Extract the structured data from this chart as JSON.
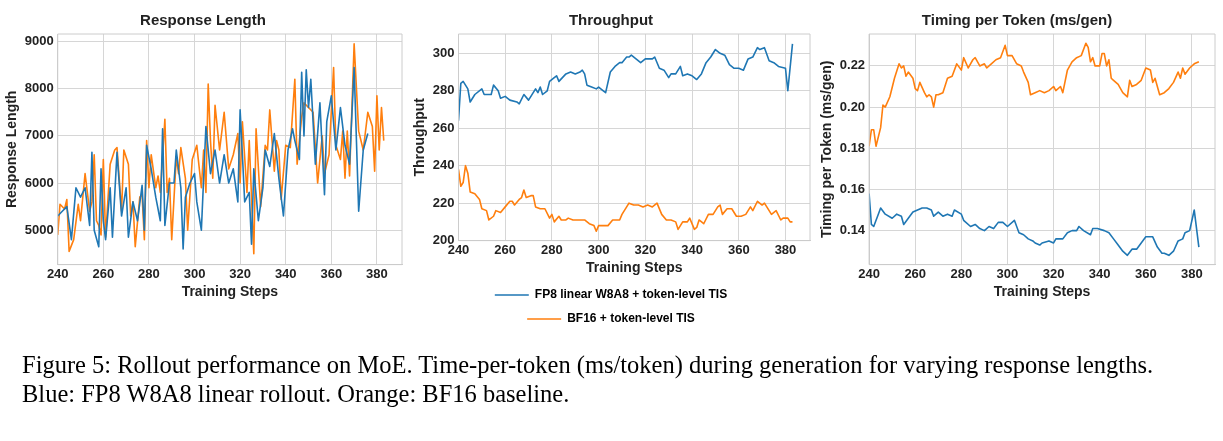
{
  "chart_data": [
    {
      "type": "line",
      "title": "Response Length",
      "xlabel": "Training Steps",
      "ylabel": "Response Length",
      "xlim": [
        240,
        391
      ],
      "xticks": [
        240,
        260,
        280,
        300,
        320,
        340,
        360,
        380
      ],
      "ylim": [
        4270,
        9160
      ],
      "yticks": [
        5000,
        6000,
        7000,
        8000,
        9000
      ],
      "grid": true,
      "marker": "none",
      "line_style": "solid",
      "legend": false,
      "series": [
        {
          "color": "#1f77b4",
          "x": [
            240,
            242,
            244,
            246,
            248,
            250,
            252,
            254,
            255,
            256,
            258,
            259,
            260,
            261,
            263,
            264,
            266,
            268,
            270,
            271,
            273,
            275,
            277,
            278,
            279,
            281,
            283,
            285,
            286,
            287,
            289,
            291,
            292,
            294,
            295,
            296,
            298,
            300,
            301,
            303,
            305,
            307,
            309,
            311,
            313,
            315,
            317,
            319,
            320,
            321,
            322,
            324,
            325,
            326,
            328,
            330,
            331,
            333,
            335,
            337,
            339,
            341,
            343,
            344,
            346,
            347,
            348,
            349,
            350,
            351,
            353,
            355,
            357,
            358,
            360,
            362,
            364,
            366,
            368,
            370,
            372,
            374,
            376
          ],
          "values": [
            5300,
            5400,
            5500,
            4800,
            5900,
            5700,
            5900,
            5100,
            6650,
            5000,
            4650,
            6300,
            5200,
            4800,
            5900,
            4850,
            6650,
            5300,
            5900,
            4850,
            5600,
            5200,
            5950,
            5000,
            6800,
            6300,
            5700,
            5200,
            7150,
            5100,
            6000,
            6000,
            6700,
            5900,
            4600,
            5700,
            6000,
            6200,
            5600,
            5000,
            7200,
            6200,
            6700,
            6000,
            6600,
            6000,
            6300,
            5600,
            7550,
            6600,
            5600,
            5800,
            4700,
            6300,
            5200,
            5900,
            6700,
            6350,
            7050,
            6100,
            5300,
            6700,
            7150,
            6900,
            6500,
            8350,
            7000,
            8400,
            7600,
            8200,
            6400,
            7700,
            5750,
            7300,
            7850,
            6700,
            7600,
            6800,
            6400,
            8450,
            5400,
            6700,
            7050
          ]
        },
        {
          "color": "#ff7f0e",
          "x": [
            240,
            241,
            243,
            244,
            245,
            247,
            249,
            250,
            252,
            254,
            255,
            256,
            257,
            258,
            259,
            260,
            261,
            263,
            265,
            266,
            268,
            269,
            271,
            272,
            273,
            274,
            276,
            277,
            278,
            279,
            280,
            281,
            283,
            284,
            285,
            287,
            288,
            289,
            290,
            292,
            293,
            294,
            296,
            297,
            299,
            301,
            303,
            304,
            305,
            306,
            307,
            308,
            309,
            311,
            313,
            315,
            317,
            319,
            320,
            321,
            323,
            324,
            326,
            327,
            329,
            331,
            332,
            333,
            335,
            336,
            337,
            338,
            340,
            342,
            344,
            345,
            347,
            348,
            350,
            352,
            354,
            356,
            357,
            359,
            361,
            362,
            364,
            365,
            366,
            367,
            368,
            370,
            372,
            374,
            376,
            378,
            379,
            380,
            381,
            382,
            383
          ],
          "values": [
            4900,
            5550,
            5450,
            5650,
            4550,
            4800,
            5550,
            5200,
            6200,
            5400,
            5600,
            6600,
            5200,
            5100,
            4900,
            6500,
            4850,
            6400,
            6700,
            6750,
            5400,
            6700,
            6400,
            5300,
            5600,
            4650,
            5700,
            5750,
            4800,
            6900,
            5900,
            6600,
            5900,
            6150,
            5800,
            7350,
            5800,
            6100,
            4800,
            6550,
            6200,
            6750,
            6100,
            5000,
            6500,
            6800,
            5900,
            6700,
            5800,
            8100,
            6900,
            6100,
            7650,
            6700,
            7500,
            6300,
            6600,
            7050,
            6000,
            7300,
            5800,
            6900,
            4500,
            7150,
            5500,
            6800,
            6700,
            7550,
            6250,
            6900,
            6700,
            5650,
            6800,
            6750,
            8200,
            6400,
            7400,
            7700,
            7600,
            7500,
            6000,
            7000,
            6200,
            6600,
            8450,
            6800,
            6500,
            7100,
            6100,
            7100,
            6150,
            8950,
            7100,
            6700,
            7500,
            7200,
            6250,
            7850,
            6700,
            7600,
            6900
          ]
        }
      ]
    },
    {
      "type": "line",
      "title": "Throughput",
      "xlabel": "Training Steps",
      "ylabel": "Throughput",
      "xlim": [
        240,
        390.5
      ],
      "xticks": [
        240,
        260,
        280,
        300,
        320,
        340,
        360,
        380
      ],
      "ylim": [
        200,
        310.3
      ],
      "yticks": [
        200,
        220,
        240,
        260,
        280,
        300
      ],
      "grid": true,
      "marker": "none",
      "line_style": "solid",
      "legend": "bottom",
      "annotations": [
        "Figure 5: Rollout performance on MoE. Time-per-token (ms/token) during generation for varying response lengths. Blue: FP8 W8A8 linear rollout. Orange: BF16 baseline."
      ],
      "series": [
        {
          "name": "FP8 linear W8A8 + token-level TIS",
          "color": "#1f77b4",
          "x": [
            240,
            241,
            242,
            244,
            245,
            247,
            250,
            251,
            254,
            255,
            257,
            258,
            260,
            262,
            265,
            266,
            268,
            270,
            273,
            274,
            275,
            276,
            278,
            279,
            281,
            282,
            283,
            286,
            288,
            290,
            292,
            293,
            294,
            295,
            297,
            299,
            300,
            302,
            303,
            305,
            307,
            309,
            310,
            312,
            313,
            314,
            316,
            318,
            320,
            323,
            324,
            326,
            328,
            330,
            331,
            333,
            335,
            336,
            338,
            340,
            342,
            344,
            346,
            348,
            349,
            350,
            352,
            354,
            356,
            358,
            360,
            362,
            364,
            366,
            368,
            369,
            371,
            373,
            375,
            377,
            380,
            381,
            383
          ],
          "values": [
            264,
            284,
            285,
            281,
            274,
            278,
            281,
            278,
            278,
            283,
            280,
            276,
            277,
            275,
            274,
            273,
            278,
            275,
            281,
            279,
            282,
            278,
            280,
            285,
            287,
            288,
            285,
            289,
            290,
            289,
            290,
            291,
            289,
            283,
            282,
            281,
            282,
            280,
            279,
            290,
            293,
            295,
            295,
            298,
            298,
            299,
            297,
            295,
            297,
            297,
            298,
            292,
            291,
            287,
            289,
            289,
            293,
            288,
            289,
            288,
            286,
            289,
            295,
            298,
            300,
            302,
            300,
            299,
            294,
            292,
            292,
            291,
            297,
            298,
            303,
            302,
            303,
            296,
            295,
            293,
            292,
            280,
            305
          ]
        },
        {
          "name": "BF16 + token-level TIS",
          "color": "#ff7f0e",
          "x": [
            240,
            241,
            242,
            243,
            244,
            245,
            247,
            249,
            250,
            252,
            253,
            255,
            256,
            258,
            260,
            262,
            263,
            264,
            266,
            267,
            268,
            269,
            271,
            272,
            273,
            275,
            277,
            279,
            280,
            281,
            283,
            284,
            286,
            287,
            289,
            291,
            294,
            296,
            298,
            299,
            300,
            302,
            304,
            306,
            307,
            309,
            310,
            312,
            313,
            315,
            317,
            319,
            321,
            323,
            325,
            327,
            329,
            331,
            333,
            334,
            336,
            338,
            339,
            341,
            342,
            343,
            345,
            347,
            349,
            351,
            352,
            353,
            355,
            357,
            359,
            361,
            363,
            365,
            366,
            368,
            370,
            371,
            372,
            374,
            376,
            378,
            379,
            381,
            382,
            383
          ],
          "values": [
            238,
            229,
            231,
            240,
            236,
            226,
            225,
            222,
            217,
            216,
            211,
            213,
            216,
            215,
            218,
            221,
            221,
            219,
            222,
            223,
            227,
            223,
            224,
            224,
            218,
            217,
            217,
            212,
            214,
            210,
            213,
            211,
            211,
            212,
            211,
            211,
            211,
            209,
            208,
            205,
            208,
            208,
            208,
            211,
            211,
            211,
            214,
            218,
            220,
            219,
            219,
            218,
            219,
            218,
            220,
            214,
            211,
            211,
            210,
            206,
            210,
            210,
            212,
            206,
            207,
            211,
            209,
            214,
            214,
            218,
            219,
            214,
            217,
            217,
            213,
            213,
            214,
            218,
            216,
            221,
            219,
            220,
            218,
            214,
            216,
            211,
            212,
            212,
            210,
            210
          ]
        }
      ]
    },
    {
      "type": "line",
      "title": "Timing per Token (ms/gen)",
      "xlabel": "Training Steps",
      "ylabel": "Timing per Token (ms/gen)",
      "xlim": [
        240,
        390
      ],
      "xticks": [
        240,
        260,
        280,
        300,
        320,
        340,
        360,
        380
      ],
      "ylim": [
        0.1235,
        0.2355
      ],
      "yticks": [
        {
          "value": 0.14,
          "label": "0.14"
        },
        {
          "value": 0.16,
          "label": "0.16"
        },
        {
          "value": 0.18,
          "label": "0.18"
        },
        {
          "value": 0.2,
          "label": "0.20"
        },
        {
          "value": 0.22,
          "label": "0.22"
        }
      ],
      "grid": true,
      "marker": "none",
      "line_style": "solid",
      "legend": false,
      "series": [
        {
          "color": "#ff7f0e",
          "x": [
            240,
            241,
            242,
            243,
            245,
            246,
            247,
            249,
            251,
            253,
            254,
            255,
            256,
            257,
            259,
            260,
            261,
            262,
            264,
            265,
            266,
            267,
            268,
            269,
            270,
            272,
            274,
            276,
            278,
            280,
            281,
            283,
            285,
            286,
            288,
            290,
            291,
            293,
            295,
            297,
            299,
            300,
            302,
            304,
            306,
            307,
            309,
            310,
            312,
            314,
            316,
            318,
            320,
            321,
            323,
            324,
            326,
            328,
            330,
            332,
            334,
            335,
            336,
            337,
            338,
            340,
            341,
            342,
            343,
            344,
            345,
            346,
            348,
            350,
            352,
            353,
            354,
            356,
            358,
            360,
            362,
            363,
            364,
            366,
            368,
            370,
            372,
            374,
            375,
            376,
            377,
            379,
            381,
            383
          ],
          "values": [
            0.181,
            0.189,
            0.189,
            0.181,
            0.19,
            0.201,
            0.2,
            0.205,
            0.214,
            0.221,
            0.219,
            0.22,
            0.215,
            0.217,
            0.214,
            0.209,
            0.208,
            0.212,
            0.207,
            0.205,
            0.206,
            0.205,
            0.2,
            0.206,
            0.206,
            0.207,
            0.214,
            0.215,
            0.221,
            0.218,
            0.224,
            0.219,
            0.223,
            0.224,
            0.22,
            0.221,
            0.219,
            0.221,
            0.223,
            0.224,
            0.23,
            0.225,
            0.225,
            0.221,
            0.22,
            0.217,
            0.212,
            0.206,
            0.207,
            0.208,
            0.207,
            0.208,
            0.21,
            0.208,
            0.21,
            0.207,
            0.218,
            0.222,
            0.224,
            0.225,
            0.231,
            0.229,
            0.222,
            0.224,
            0.22,
            0.22,
            0.226,
            0.226,
            0.22,
            0.223,
            0.214,
            0.213,
            0.211,
            0.207,
            0.205,
            0.213,
            0.21,
            0.211,
            0.213,
            0.219,
            0.218,
            0.212,
            0.214,
            0.206,
            0.207,
            0.209,
            0.212,
            0.217,
            0.214,
            0.219,
            0.216,
            0.219,
            0.221,
            0.222
          ]
        },
        {
          "color": "#1f77b4",
          "x": [
            240,
            241,
            242,
            244,
            245,
            247,
            250,
            252,
            254,
            255,
            257,
            259,
            261,
            263,
            265,
            267,
            268,
            270,
            272,
            274,
            276,
            277,
            280,
            281,
            284,
            286,
            288,
            290,
            292,
            294,
            296,
            298,
            300,
            303,
            305,
            307,
            309,
            311,
            312,
            314,
            315,
            318,
            320,
            321,
            324,
            326,
            328,
            330,
            331,
            333,
            336,
            337,
            339,
            342,
            344,
            346,
            348,
            350,
            352,
            354,
            356,
            358,
            360,
            363,
            365,
            367,
            368,
            370,
            372,
            374,
            376,
            377,
            379,
            381,
            383
          ],
          "values": [
            0.158,
            0.143,
            0.142,
            0.148,
            0.151,
            0.148,
            0.146,
            0.148,
            0.147,
            0.143,
            0.146,
            0.149,
            0.15,
            0.151,
            0.151,
            0.15,
            0.147,
            0.149,
            0.147,
            0.148,
            0.147,
            0.15,
            0.148,
            0.145,
            0.142,
            0.143,
            0.141,
            0.14,
            0.142,
            0.141,
            0.144,
            0.144,
            0.142,
            0.145,
            0.139,
            0.138,
            0.136,
            0.135,
            0.134,
            0.133,
            0.134,
            0.135,
            0.134,
            0.136,
            0.136,
            0.139,
            0.14,
            0.14,
            0.142,
            0.14,
            0.138,
            0.141,
            0.141,
            0.14,
            0.139,
            0.136,
            0.133,
            0.13,
            0.128,
            0.131,
            0.131,
            0.134,
            0.137,
            0.137,
            0.132,
            0.129,
            0.129,
            0.128,
            0.13,
            0.135,
            0.136,
            0.139,
            0.14,
            0.15,
            0.132
          ]
        }
      ]
    }
  ]
}
